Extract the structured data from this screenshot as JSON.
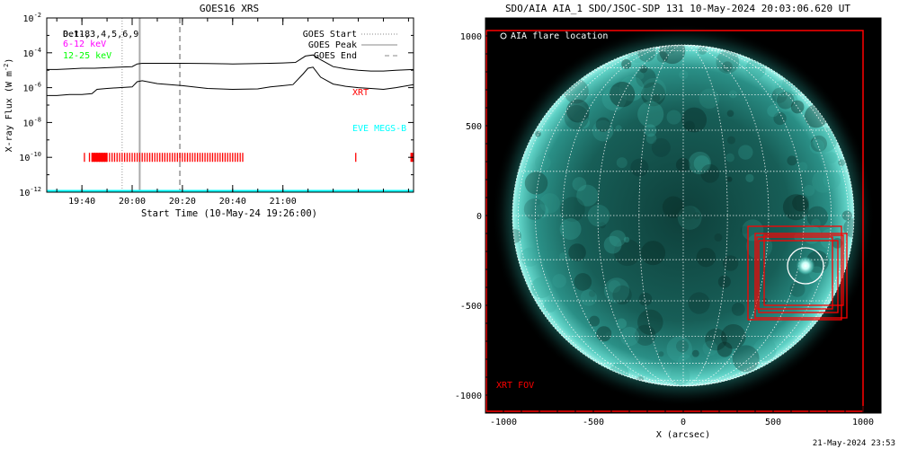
{
  "colors": {
    "xrt": "#ff0000",
    "eve": "#00ffff",
    "low_band": "#ff00ff",
    "high_band": "#00ff00",
    "sun": "#2a8f86",
    "grid": "#ffffff"
  },
  "chart_data": [
    {
      "type": "line",
      "title": "GOES16 XRS",
      "xlabel": "Start Time (10-May-24 19:26:00)",
      "ylabel": "X-ray Flux (W m",
      "ylabel_sup": "-2",
      "ylabel_close": ")",
      "y_scale": "log",
      "xlim": [
        "19:26",
        "21:52"
      ],
      "ylim": [
        1e-12,
        0.01
      ],
      "x_ticks": [
        "19:40",
        "20:00",
        "20:20",
        "20:40",
        "21:00"
      ],
      "y_ticks": [
        {
          "base": "10",
          "exp": "-2",
          "value": 0.01
        },
        {
          "base": "10",
          "exp": "-4",
          "value": 0.0001
        },
        {
          "base": "10",
          "exp": "-6",
          "value": 1e-06
        },
        {
          "base": "10",
          "exp": "-8",
          "value": 1e-08
        },
        {
          "base": "10",
          "exp": "-10",
          "value": 1e-10
        },
        {
          "base": "10",
          "exp": "-12",
          "value": 1e-12
        }
      ],
      "band_labels": [
        {
          "text": "Det1,3,4,5,6,9",
          "color": "#000000"
        },
        {
          "text": "0.1-8",
          "color": "#000000"
        },
        {
          "text": "6-12 keV",
          "color": "#ff00ff"
        },
        {
          "text": "12-25 keV",
          "color": "#00ff00"
        }
      ],
      "legend": [
        {
          "label": "GOES Start",
          "style": "dotted"
        },
        {
          "label": "GOES Peak",
          "style": "solid"
        },
        {
          "label": "GOES End",
          "style": "dashed"
        }
      ],
      "legend_position": "top-right",
      "annotations": [
        "XRT",
        "EVE MEGS-B"
      ],
      "event_lines": {
        "start": "19:56",
        "peak": "20:03",
        "end": "20:19"
      },
      "series": [
        {
          "key": "long",
          "x": [
            "19:26",
            "19:30",
            "19:35",
            "19:40",
            "19:45",
            "19:50",
            "19:55",
            "20:00",
            "20:02",
            "20:04",
            "20:10",
            "20:20",
            "20:30",
            "20:40",
            "20:50",
            "20:55",
            "21:00",
            "21:05",
            "21:09",
            "21:12",
            "21:15",
            "21:20",
            "21:25",
            "21:30",
            "21:35",
            "21:40",
            "21:45",
            "21:52"
          ],
          "y": [
            1.1e-05,
            1.1e-05,
            1.2e-05,
            1.3e-05,
            1.3e-05,
            1.4e-05,
            1.5e-05,
            1.6e-05,
            2.3e-05,
            2.5e-05,
            2.5e-05,
            2.5e-05,
            2.4e-05,
            2.3e-05,
            2.4e-05,
            2.5e-05,
            2.6e-05,
            2.8e-05,
            6.5e-05,
            7.5e-05,
            4e-05,
            1.6e-05,
            1.2e-05,
            1e-05,
            9e-06,
            9e-06,
            1e-05,
            1.1e-05
          ]
        },
        {
          "key": "short",
          "x": [
            "19:26",
            "19:30",
            "19:35",
            "19:40",
            "19:44",
            "19:46",
            "19:50",
            "19:55",
            "20:00",
            "20:02",
            "20:04",
            "20:10",
            "20:20",
            "20:30",
            "20:40",
            "20:50",
            "20:55",
            "21:00",
            "21:04",
            "21:08",
            "21:10",
            "21:12",
            "21:15",
            "21:20",
            "21:25",
            "21:30",
            "21:35",
            "21:40",
            "21:45",
            "21:52"
          ],
          "y": [
            3.5e-07,
            3.5e-07,
            4e-07,
            4e-07,
            4.5e-07,
            8e-07,
            9e-07,
            1e-06,
            1.1e-06,
            2.2e-06,
            2.5e-06,
            1.7e-06,
            1.3e-06,
            9e-07,
            8e-07,
            8.5e-07,
            1.1e-06,
            1.3e-06,
            1.5e-06,
            6e-06,
            1.3e-05,
            1.5e-05,
            4e-06,
            1.6e-06,
            1.2e-06,
            1e-06,
            9e-07,
            8e-07,
            1e-06,
            1.5e-06
          ]
        }
      ],
      "xrt_marks": {
        "y": 1e-10,
        "times": [
          "19:41",
          "19:43",
          "19:44",
          "19:45",
          "19:46",
          "19:47",
          "19:48",
          "19:49",
          "19:50",
          "19:51",
          "19:52",
          "19:53",
          "19:54",
          "19:55",
          "19:56",
          "19:57",
          "19:58",
          "19:59",
          "20:00",
          "20:01",
          "20:02",
          "20:03",
          "20:04",
          "20:05",
          "20:06",
          "20:07",
          "20:08",
          "20:09",
          "20:10",
          "20:11",
          "20:12",
          "20:13",
          "20:14",
          "20:15",
          "20:16",
          "20:17",
          "20:18",
          "20:19",
          "20:20",
          "20:21",
          "20:22",
          "20:23",
          "20:24",
          "20:25",
          "20:26",
          "20:27",
          "20:28",
          "20:29",
          "20:30",
          "20:31",
          "20:32",
          "20:33",
          "20:34",
          "20:35",
          "20:36",
          "20:37",
          "20:38",
          "20:39",
          "20:40",
          "20:41",
          "20:42",
          "20:43",
          "20:44",
          "21:29",
          "21:51",
          "21:52"
        ],
        "solid_spans": [
          [
            "19:44",
            "19:50"
          ],
          [
            "21:51",
            "21:52"
          ]
        ]
      }
    },
    {
      "type": "image",
      "title": "SDO/AIA AIA_1 SDO/JSOC-SDP 131 10-May-2024 20:03:06.620 UT",
      "xlabel": "X (arcsec)",
      "xlim": [
        -1100,
        1100
      ],
      "ylim": [
        -1100,
        1100
      ],
      "x_ticks": [
        "-1000",
        "-500",
        "0",
        "500",
        "1000"
      ],
      "y_ticks": [
        "1000",
        "500",
        "0",
        "-500",
        "-1000"
      ],
      "legend_label": "AIA flare location",
      "fov_label": "XRT FOV",
      "solar_radius": 950,
      "flare_location": [
        680,
        -280
      ],
      "xrt_fov": {
        "x": [
          -1100,
          1000
        ],
        "y": [
          -1100,
          1030
        ]
      },
      "boxes": [
        {
          "x": [
            360,
            880
          ],
          "y": [
            -580,
            -60
          ]
        },
        {
          "x": [
            400,
            910
          ],
          "y": [
            -570,
            -100
          ]
        },
        {
          "x": [
            410,
            830
          ],
          "y": [
            -520,
            -120
          ]
        },
        {
          "x": [
            420,
            860
          ],
          "y": [
            -540,
            -140
          ]
        },
        {
          "x": [
            450,
            890
          ],
          "y": [
            -500,
            -110
          ]
        }
      ]
    }
  ],
  "footer_timestamp": "21-May-2024 23:53"
}
